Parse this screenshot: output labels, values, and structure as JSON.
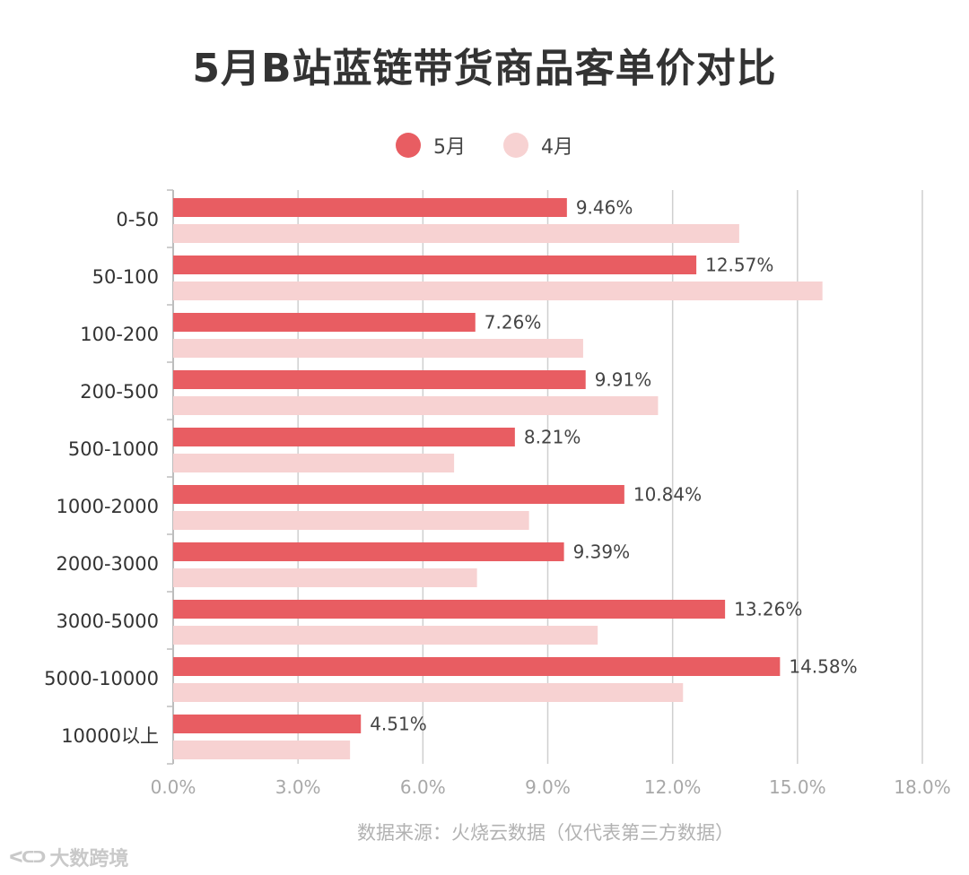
{
  "chart_data": {
    "type": "bar",
    "orientation": "horizontal",
    "title": "5月B站蓝链带货商品客单价对比",
    "categories": [
      "0-50",
      "50-100",
      "100-200",
      "200-500",
      "500-1000",
      "1000-2000",
      "2000-3000",
      "3000-5000",
      "5000-10000",
      "10000以上"
    ],
    "series": [
      {
        "name": "5月",
        "color": "#e85d62",
        "values": [
          9.46,
          12.57,
          7.26,
          9.91,
          8.21,
          10.84,
          9.39,
          13.26,
          14.58,
          4.51
        ],
        "labels": [
          "9.46%",
          "12.57%",
          "7.26%",
          "9.91%",
          "8.21%",
          "10.84%",
          "9.39%",
          "13.26%",
          "14.58%",
          "4.51%"
        ]
      },
      {
        "name": "4月",
        "color": "#f7d2d2",
        "values": [
          13.6,
          15.6,
          9.85,
          11.65,
          6.75,
          8.55,
          7.3,
          10.2,
          12.25,
          4.25
        ]
      }
    ],
    "xlim": [
      0,
      18
    ],
    "ticks": [
      "0.0%",
      "3.0%",
      "6.0%",
      "9.0%",
      "12.0%",
      "15.0%",
      "18.0%"
    ],
    "grid": true,
    "legend_position": "top-center"
  },
  "footer": {
    "source": "数据来源：火烧云数据（仅代表第三方数据）",
    "watermark": "大数跨境",
    "watermark_logo": "ᐸᑕᑐ"
  }
}
